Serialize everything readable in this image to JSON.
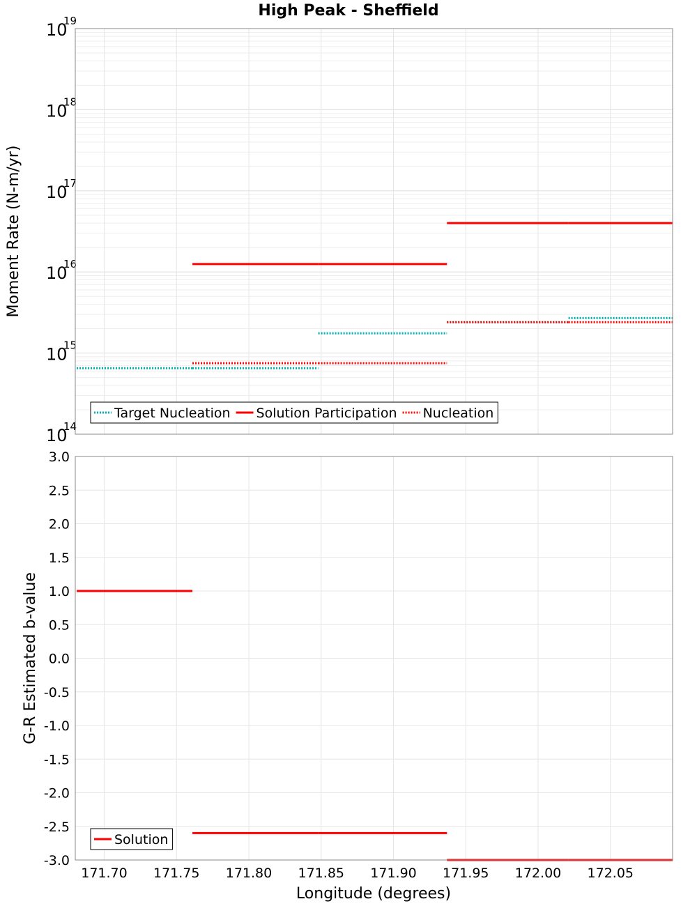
{
  "chart_data": {
    "title": "High Peak - Sheffield",
    "xlabel": "Longitude (degrees)",
    "xlim": [
      171.68,
      172.093
    ],
    "xticks": [
      "171.70",
      "171.75",
      "171.80",
      "171.85",
      "171.90",
      "171.95",
      "172.00",
      "172.05"
    ],
    "panels": [
      {
        "type": "line",
        "yscale": "log",
        "ylabel": "Moment Rate (N-m/yr)",
        "ylim": [
          100000000000000.0,
          1e+19
        ],
        "ytick_exponents": [
          "14",
          "15",
          "16",
          "17",
          "18",
          "19"
        ],
        "ytick_base": "10",
        "legend": {
          "placement": "bottom-left"
        },
        "series": [
          {
            "name": "Target Nucleation",
            "style": "dotted",
            "color": "#00b0b0",
            "segments": [
              {
                "x": [
                  171.681,
                  171.761
                ],
                "y": 650000000000000.0
              },
              {
                "x": [
                  171.761,
                  171.848
                ],
                "y": 650000000000000.0
              },
              {
                "x": [
                  171.848,
                  171.937
                ],
                "y": 1750000000000000.0
              },
              {
                "x": [
                  171.937,
                  172.021
                ],
                "y": 2400000000000000.0
              },
              {
                "x": [
                  172.021,
                  172.093
                ],
                "y": 2700000000000000.0
              }
            ]
          },
          {
            "name": "Solution Participation",
            "style": "solid",
            "color": "#ff0000",
            "segments": [
              {
                "x": [
                  171.761,
                  171.848
                ],
                "y": 1.25e+16
              },
              {
                "x": [
                  171.848,
                  171.937
                ],
                "y": 1.25e+16
              },
              {
                "x": [
                  171.937,
                  172.021
                ],
                "y": 4e+16
              },
              {
                "x": [
                  172.021,
                  172.093
                ],
                "y": 4e+16
              }
            ]
          },
          {
            "name": "Nucleation",
            "style": "dotted",
            "color": "#ff0000",
            "segments": [
              {
                "x": [
                  171.761,
                  171.848
                ],
                "y": 750000000000000.0
              },
              {
                "x": [
                  171.848,
                  171.937
                ],
                "y": 750000000000000.0
              },
              {
                "x": [
                  171.937,
                  172.021
                ],
                "y": 2400000000000000.0
              },
              {
                "x": [
                  172.021,
                  172.093
                ],
                "y": 2400000000000000.0
              }
            ]
          }
        ]
      },
      {
        "type": "line",
        "yscale": "linear",
        "ylabel": "G-R Estimated b-value",
        "ylim": [
          -3.0,
          3.0
        ],
        "yticks": [
          "3.0",
          "2.5",
          "2.0",
          "1.5",
          "1.0",
          "0.5",
          "0.0",
          "-0.5",
          "-1.0",
          "-1.5",
          "-2.0",
          "-2.5",
          "-3.0"
        ],
        "legend": {
          "placement": "bottom-left"
        },
        "series": [
          {
            "name": "Solution",
            "style": "solid",
            "color": "#ff0000",
            "segments": [
              {
                "x": [
                  171.681,
                  171.761
                ],
                "y": 1.0
              },
              {
                "x": [
                  171.761,
                  171.848
                ],
                "y": -2.6
              },
              {
                "x": [
                  171.848,
                  171.937
                ],
                "y": -2.6
              },
              {
                "x": [
                  171.937,
                  172.021
                ],
                "y": -3.0
              },
              {
                "x": [
                  172.021,
                  172.093
                ],
                "y": -3.0
              }
            ]
          }
        ]
      }
    ]
  }
}
